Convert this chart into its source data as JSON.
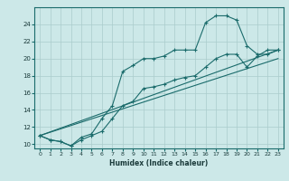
{
  "xlabel": "Humidex (Indice chaleur)",
  "bg_color": "#cce8e8",
  "line_color": "#1a6b6b",
  "grid_color": "#aacccc",
  "xlim": [
    -0.5,
    23.5
  ],
  "ylim": [
    9.5,
    26
  ],
  "xticks": [
    0,
    1,
    2,
    3,
    4,
    5,
    6,
    7,
    8,
    9,
    10,
    11,
    12,
    13,
    14,
    15,
    16,
    17,
    18,
    19,
    20,
    21,
    22,
    23
  ],
  "yticks": [
    10,
    12,
    14,
    16,
    18,
    20,
    22,
    24
  ],
  "line_main": {
    "x": [
      0,
      1,
      2,
      3,
      4,
      5,
      6,
      7,
      8,
      9,
      10,
      11,
      12,
      13,
      14,
      15,
      16,
      17,
      18,
      19,
      20,
      21,
      22,
      23
    ],
    "y": [
      11,
      10.5,
      10.3,
      9.8,
      10.8,
      11.2,
      13,
      14.5,
      18.5,
      19.2,
      20,
      20,
      20.3,
      21,
      21,
      21,
      24.2,
      25,
      25,
      24.5,
      21.5,
      20.5,
      20.5,
      21
    ]
  },
  "line_secondary": {
    "x": [
      0,
      1,
      2,
      3,
      4,
      5,
      6,
      7,
      8,
      9,
      10,
      11,
      12,
      13,
      14,
      15,
      16,
      17,
      18,
      19,
      20,
      21,
      22,
      23
    ],
    "y": [
      11,
      10.5,
      10.3,
      9.8,
      10.5,
      11,
      11.5,
      13,
      14.5,
      15,
      16.5,
      16.7,
      17,
      17.5,
      17.8,
      18,
      19,
      20,
      20.5,
      20.5,
      19,
      20.3,
      21,
      21
    ]
  },
  "line_straight1": {
    "x": [
      0,
      23
    ],
    "y": [
      11,
      21
    ]
  },
  "line_straight2": {
    "x": [
      0,
      23
    ],
    "y": [
      11,
      20
    ]
  }
}
